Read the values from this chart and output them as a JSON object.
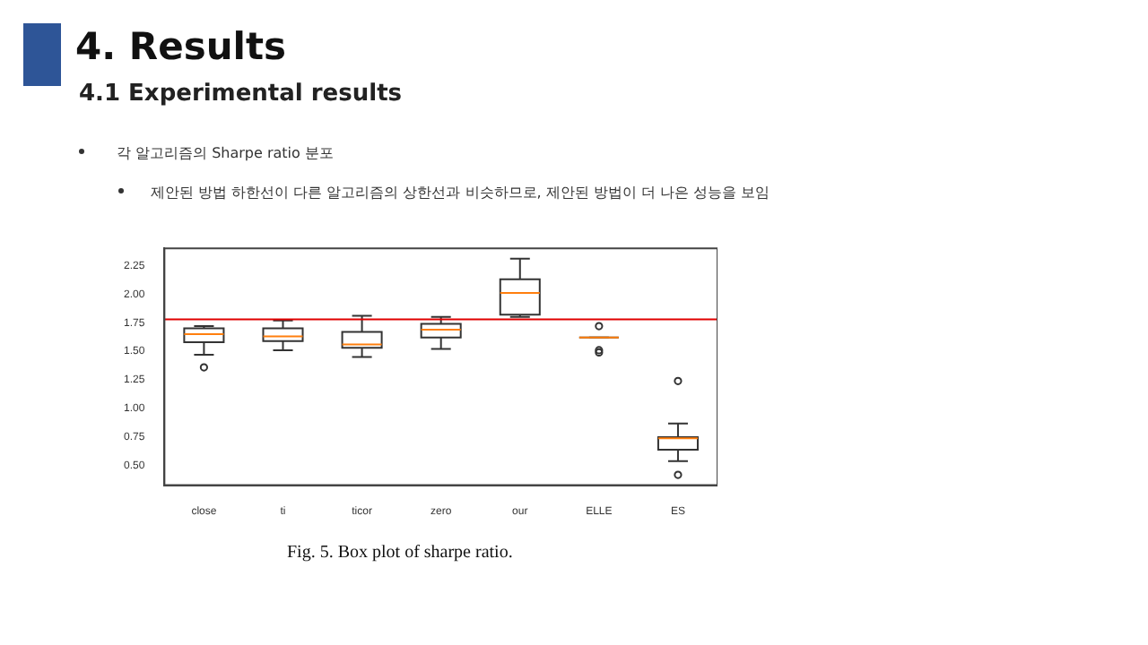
{
  "chart_data": {
    "type": "box",
    "title": "4. Results",
    "subtitle": "4.1 Experimental results",
    "annotations": [
      "각 알고리즘의 Sharpe ratio 분포",
      "제안된 방법 하한선이 다른 알고리즘의 상한선과 비슷하므로, 제안된 방법이 더 나은 성능을 보임",
      "Fig. 5.  Box plot of sharpe ratio."
    ],
    "categories": [
      "close",
      "ti",
      "ticor",
      "zero",
      "our",
      "ELLE",
      "ES"
    ],
    "boxes": [
      {
        "low": 1.47,
        "q1": 1.58,
        "median": 1.65,
        "q3": 1.7,
        "high": 1.72,
        "outliers": [
          1.36
        ]
      },
      {
        "low": 1.51,
        "q1": 1.59,
        "median": 1.63,
        "q3": 1.7,
        "high": 1.77
      },
      {
        "low": 1.45,
        "q1": 1.53,
        "median": 1.56,
        "q3": 1.67,
        "high": 1.81
      },
      {
        "low": 1.52,
        "q1": 1.62,
        "median": 1.69,
        "q3": 1.74,
        "high": 1.8
      },
      {
        "low": 1.8,
        "q1": 1.82,
        "median": 2.01,
        "q3": 2.13,
        "high": 2.31
      },
      {
        "low": 1.62,
        "q1": 1.62,
        "median": 1.62,
        "q3": 1.62,
        "high": 1.62,
        "outliers": [
          1.72,
          1.51,
          1.49
        ]
      },
      {
        "low": 0.54,
        "q1": 0.64,
        "median": 0.74,
        "q3": 0.75,
        "high": 0.87,
        "outliers": [
          1.24,
          0.42
        ]
      }
    ],
    "color": "#333333",
    "ylim": [
      0.33,
      2.4
    ],
    "yticks": [
      {
        "value": 0.5,
        "label": "0.50"
      },
      {
        "value": 0.75,
        "label": "0.75"
      },
      {
        "value": 1,
        "label": "1.00"
      },
      {
        "value": 1.25,
        "label": "1.25"
      },
      {
        "value": 1.5,
        "label": "1.50"
      },
      {
        "value": 1.75,
        "label": "1.75"
      },
      {
        "value": 2,
        "label": "2.00"
      },
      {
        "value": 2.25,
        "label": "2.25"
      }
    ],
    "ref_lines": [
      {
        "axis": "y",
        "value": 1.78,
        "color": "#e00000"
      }
    ],
    "grid": false,
    "legend": false
  }
}
